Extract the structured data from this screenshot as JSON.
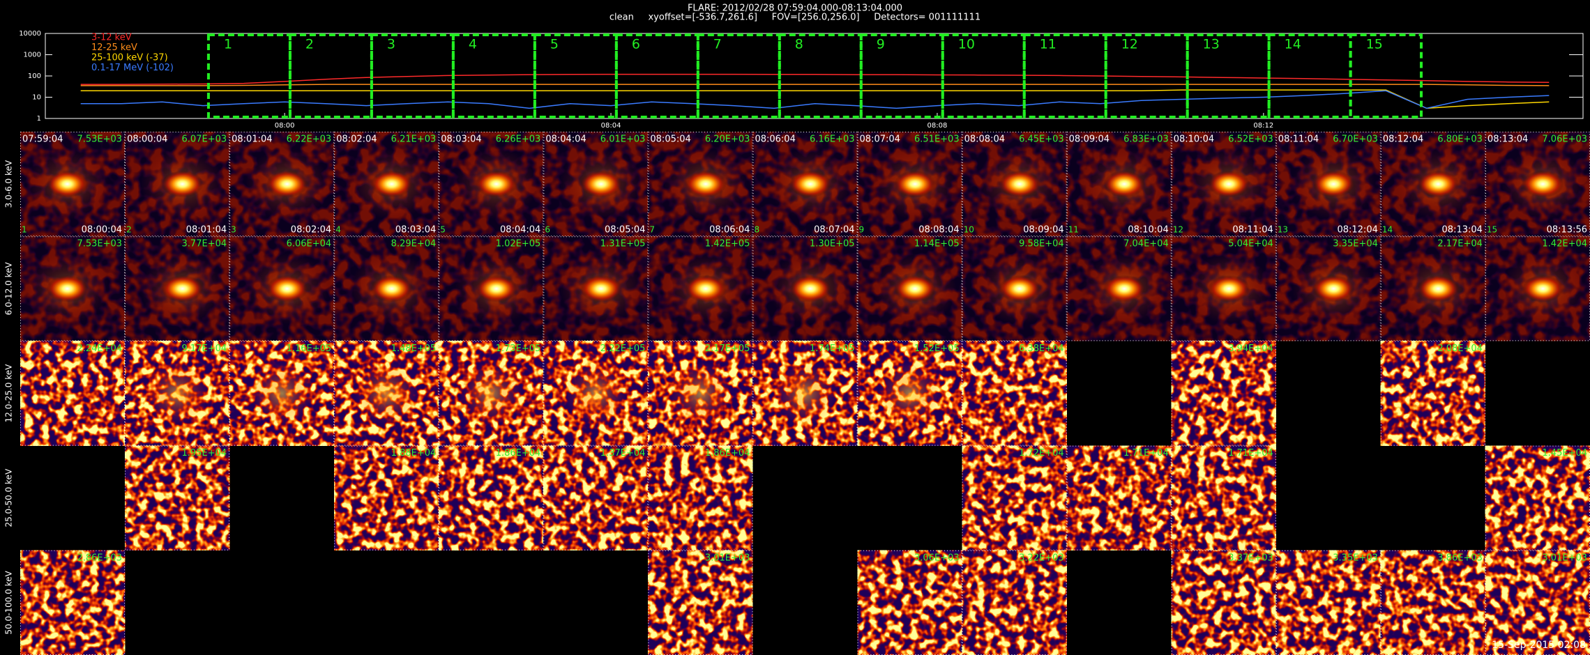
{
  "header": {
    "title": "FLARE: 2012/02/28 07:59:04.000-08:13:04.000",
    "subtitle": "clean     xyoffset=[-536.7,261.6]     FOV=[256.0,256.0]     Detectors= 001111111"
  },
  "chart_data": {
    "type": "line",
    "log_y": true,
    "x": [
      "07:57:30",
      "07:58:00",
      "07:58:30",
      "07:59:00",
      "07:59:30",
      "08:00:00",
      "08:00:30",
      "08:01:00",
      "08:01:30",
      "08:02:00",
      "08:02:30",
      "08:03:00",
      "08:03:30",
      "08:04:00",
      "08:04:30",
      "08:05:00",
      "08:05:30",
      "08:06:00",
      "08:06:30",
      "08:07:00",
      "08:07:30",
      "08:08:00",
      "08:08:30",
      "08:09:00",
      "08:09:30",
      "08:10:00",
      "08:10:30",
      "08:11:00",
      "08:11:30",
      "08:12:00",
      "08:12:30",
      "08:13:00",
      "08:13:30",
      "08:14:00",
      "08:14:30",
      "08:15:00",
      "08:15:30"
    ],
    "xlim": [
      "07:57:04",
      "08:15:55"
    ],
    "xticks": [
      {
        "value": "08:00:00",
        "label": "08:00"
      },
      {
        "value": "08:04:00",
        "label": "08:04"
      },
      {
        "value": "08:08:00",
        "label": "08:08"
      },
      {
        "value": "08:12:00",
        "label": "08:12"
      }
    ],
    "ylim": [
      1,
      10000
    ],
    "yticks": [
      1,
      10,
      100,
      1000,
      10000
    ],
    "series": [
      {
        "name": "3-12 keV",
        "color": "#ff2a2a",
        "values": [
          40,
          40,
          41,
          42,
          45,
          55,
          70,
          85,
          95,
          105,
          110,
          115,
          118,
          120,
          120,
          120,
          120,
          118,
          118,
          115,
          115,
          112,
          110,
          108,
          105,
          100,
          95,
          90,
          85,
          80,
          75,
          70,
          65,
          60,
          55,
          52,
          50
        ]
      },
      {
        "name": "12-25 keV",
        "color": "#ff8c1a",
        "values": [
          35,
          35,
          35,
          35,
          36,
          38,
          40,
          40,
          40,
          40,
          40,
          40,
          40,
          40,
          40,
          40,
          40,
          40,
          40,
          40,
          40,
          40,
          40,
          40,
          40,
          40,
          40,
          40,
          40,
          40,
          40,
          40,
          40,
          40,
          38,
          36,
          35
        ]
      },
      {
        "name": "25-100 keV (-37)",
        "color": "#ffd700",
        "values": [
          20,
          20,
          20,
          20,
          20,
          20,
          20,
          20,
          20,
          20,
          20,
          20,
          20,
          20,
          20,
          20,
          20,
          20,
          20,
          20,
          20,
          20,
          20,
          20,
          20,
          20,
          20,
          22,
          22,
          22,
          22,
          22,
          22,
          3,
          4,
          5,
          6
        ]
      },
      {
        "name": "0.1-17 MeV (-102)",
        "color": "#3a7bff",
        "values": [
          5,
          5,
          6,
          4,
          5,
          6,
          5,
          4,
          5,
          6,
          5,
          3,
          5,
          4,
          6,
          5,
          4,
          3,
          5,
          4,
          3,
          4,
          5,
          4,
          6,
          5,
          7,
          8,
          9,
          10,
          12,
          15,
          20,
          3,
          8,
          10,
          12
        ]
      }
    ],
    "box_color": "#22ee22"
  },
  "image_grid": {
    "columns": [
      {
        "interval": "1",
        "start": "07:59:04",
        "end": "08:00:04"
      },
      {
        "interval": "2",
        "start": "08:00:04",
        "end": "08:01:04"
      },
      {
        "interval": "3",
        "start": "08:01:04",
        "end": "08:02:04"
      },
      {
        "interval": "4",
        "start": "08:02:04",
        "end": "08:03:04"
      },
      {
        "interval": "5",
        "start": "08:03:04",
        "end": "08:04:04"
      },
      {
        "interval": "6",
        "start": "08:04:04",
        "end": "08:05:04"
      },
      {
        "interval": "7",
        "start": "08:05:04",
        "end": "08:06:04"
      },
      {
        "interval": "8",
        "start": "08:06:04",
        "end": "08:07:04"
      },
      {
        "interval": "9",
        "start": "08:07:04",
        "end": "08:08:04"
      },
      {
        "interval": "10",
        "start": "08:08:04",
        "end": "08:09:04"
      },
      {
        "interval": "11",
        "start": "08:09:04",
        "end": "08:10:04"
      },
      {
        "interval": "12",
        "start": "08:10:04",
        "end": "08:11:04"
      },
      {
        "interval": "13",
        "start": "08:11:04",
        "end": "08:12:04"
      },
      {
        "interval": "14",
        "start": "08:12:04",
        "end": "08:13:04"
      },
      {
        "interval": "15",
        "start": "08:13:04",
        "end": "08:13:56"
      }
    ],
    "rows": [
      {
        "label": "3.0-6.0 keV",
        "peaks": [
          "7.53E+03",
          "6.07E+03",
          "6.22E+03",
          "6.21E+03",
          "6.26E+03",
          "6.01E+03",
          "6.20E+03",
          "6.16E+03",
          "6.51E+03",
          "6.45E+03",
          "6.83E+03",
          "6.52E+03",
          "6.70E+03",
          "6.80E+03",
          "7.06E+03"
        ]
      },
      {
        "label": "6.0-12.0 keV",
        "peaks": [
          "7.53E+03",
          "3.77E+04",
          "6.06E+04",
          "8.29E+04",
          "1.02E+05",
          "1.31E+05",
          "1.42E+05",
          "1.30E+05",
          "1.14E+05",
          "9.58E+04",
          "7.04E+04",
          "5.04E+04",
          "3.35E+04",
          "2.17E+04",
          "1.42E+04"
        ]
      },
      {
        "label": "12.0-25.0 keV",
        "peaks": [
          "2.24E+04",
          "9.17E+04",
          "1.16E+05",
          "1.48E+05",
          "1.73E+05",
          "2.22E+05",
          "2.17E+05",
          "1.74E+05",
          "1.52E+05",
          "6.38E+04",
          null,
          "3.94E+04",
          null,
          "2.08E+04",
          null
        ]
      },
      {
        "label": "25.0-50.0 keV",
        "peaks": [
          null,
          "1.95E+04",
          null,
          "1.88E+04",
          "1.86E+04",
          "1.37E+04",
          "1.86E+04",
          null,
          null,
          "1.72E+04",
          "1.71E+04",
          "1.71E+04",
          null,
          null,
          "1.45E+04"
        ]
      },
      {
        "label": "50.0-100.0 keV",
        "peaks": [
          "2.86E+03",
          null,
          null,
          null,
          null,
          null,
          "3.01E+03",
          null,
          "3.06E+03",
          "3.22E+03",
          null,
          "3.37E+03",
          "3.35E+03",
          "3.86E+03",
          "3.01E+03"
        ]
      }
    ]
  },
  "footer": {
    "timestamp": "15-Sep-2015 02:08"
  }
}
